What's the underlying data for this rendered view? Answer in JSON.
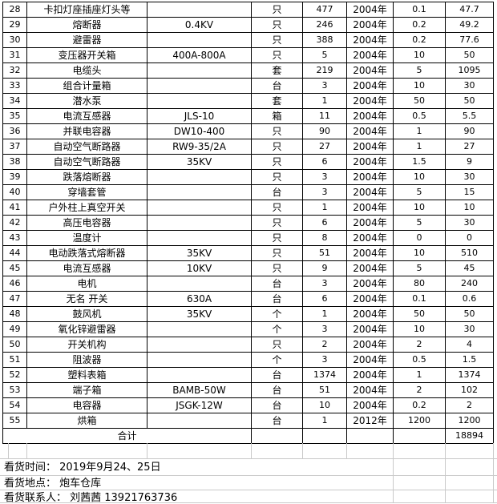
{
  "table": {
    "columns": [
      "row_no",
      "item_name",
      "spec",
      "unit",
      "qty",
      "year",
      "unit_price",
      "total"
    ],
    "rows": [
      [
        "28",
        "卡扣灯座插座灯头等",
        "",
        "只",
        "477",
        "2004年",
        "0.1",
        "47.7"
      ],
      [
        "29",
        "熔断器",
        "0.4KV",
        "只",
        "246",
        "2004年",
        "0.2",
        "49.2"
      ],
      [
        "30",
        "避雷器",
        "",
        "只",
        "388",
        "2004年",
        "0.2",
        "77.6"
      ],
      [
        "31",
        "变压器开关箱",
        "400A-800A",
        "只",
        "5",
        "2004年",
        "10",
        "50"
      ],
      [
        "32",
        "电缆头",
        "",
        "套",
        "219",
        "2004年",
        "5",
        "1095"
      ],
      [
        "33",
        "组合计量箱",
        "",
        "台",
        "3",
        "2004年",
        "10",
        "30"
      ],
      [
        "34",
        "潜水泵",
        "",
        "套",
        "1",
        "2004年",
        "50",
        "50"
      ],
      [
        "35",
        "电流互感器",
        "JLS-10",
        "箱",
        "11",
        "2004年",
        "0.5",
        "5.5"
      ],
      [
        "36",
        "并联电容器",
        "DW10-400",
        "只",
        "90",
        "2004年",
        "1",
        "90"
      ],
      [
        "37",
        "自动空气断路器",
        "RW9-35/2A",
        "只",
        "27",
        "2004年",
        "1",
        "27"
      ],
      [
        "38",
        "自动空气断路器",
        "35KV",
        "只",
        "6",
        "2004年",
        "1.5",
        "9"
      ],
      [
        "39",
        "跌落熔断器",
        "",
        "只",
        "3",
        "2004年",
        "10",
        "30"
      ],
      [
        "40",
        "穿墙套管",
        "",
        "台",
        "3",
        "2004年",
        "5",
        "15"
      ],
      [
        "41",
        "户外柱上真空开关",
        "",
        "只",
        "1",
        "2004年",
        "10",
        "10"
      ],
      [
        "42",
        "高压电容器",
        "",
        "只",
        "6",
        "2004年",
        "5",
        "30"
      ],
      [
        "43",
        "温度计",
        "",
        "只",
        "8",
        "2004年",
        "0",
        "0"
      ],
      [
        "44",
        "电动跌落式熔断器",
        "35KV",
        "只",
        "51",
        "2004年",
        "10",
        "510"
      ],
      [
        "45",
        "电流互感器",
        "10KV",
        "只",
        "9",
        "2004年",
        "5",
        "45"
      ],
      [
        "46",
        "电机",
        "",
        "台",
        "3",
        "2004年",
        "80",
        "240"
      ],
      [
        "47",
        "无名 开关",
        "630A",
        "台",
        "6",
        "2004年",
        "0.1",
        "0.6"
      ],
      [
        "48",
        "鼓风机",
        "35KV",
        "个",
        "1",
        "2004年",
        "50",
        "50"
      ],
      [
        "49",
        "氧化锌避雷器",
        "",
        "个",
        "3",
        "2004年",
        "10",
        "30"
      ],
      [
        "50",
        "开关机构",
        "",
        "只",
        "2",
        "2004年",
        "2",
        "4"
      ],
      [
        "51",
        "阻波器",
        "",
        "个",
        "3",
        "2004年",
        "0.5",
        "1.5"
      ],
      [
        "52",
        "塑料表箱",
        "",
        "台",
        "1374",
        "2004年",
        "1",
        "1374"
      ],
      [
        "53",
        "端子箱",
        "BAMB-50W",
        "台",
        "51",
        "2004年",
        "2",
        "102"
      ],
      [
        "54",
        "电容器",
        "JSGK-12W",
        "台",
        "10",
        "2004年",
        "0.2",
        "2"
      ],
      [
        "55",
        "烘箱",
        "",
        "台",
        "1",
        "2012年",
        "1200",
        "1200"
      ]
    ],
    "summary": {
      "label": "合计",
      "total": "18894"
    }
  },
  "notes": {
    "lines": [
      {
        "text": "看货时间： 2019年9月24、25日"
      },
      {
        "text": "看货地点： 炮车仓库"
      },
      {
        "text": "看货联系人： 刘茜茜  13921763736"
      }
    ]
  },
  "colors": {
    "border": "#000000",
    "gridline": "#c9c9c9",
    "background": "#ffffff",
    "text": "#000000"
  }
}
